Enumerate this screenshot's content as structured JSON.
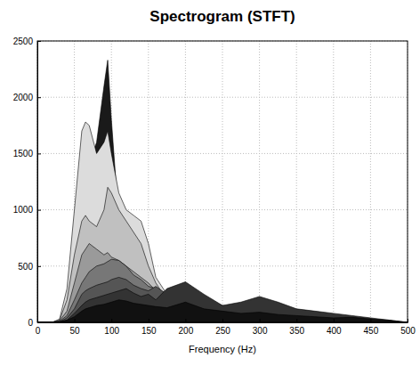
{
  "chart_data": {
    "type": "area",
    "title": "Spectrogram (STFT)",
    "x_label": "Frequency (Hz)",
    "x": [
      0,
      20,
      30,
      40,
      50,
      60,
      65,
      70,
      80,
      90,
      95,
      100,
      110,
      120,
      130,
      140,
      150,
      160,
      175,
      200,
      225,
      250,
      275,
      300,
      325,
      350,
      375,
      400,
      425,
      450,
      475,
      500
    ],
    "xlim": [
      0,
      500
    ],
    "xticks": [
      0,
      50,
      100,
      150,
      200,
      250,
      300,
      350,
      400,
      450,
      500
    ],
    "ylim": [
      0,
      2500
    ],
    "yticks": [
      0,
      500,
      1000,
      1500,
      2000,
      2500
    ],
    "grid": true,
    "series": [
      {
        "color": "#1a1a1a",
        "values": [
          0,
          0,
          20,
          150,
          600,
          1300,
          1500,
          1400,
          1600,
          2100,
          2330,
          1800,
          900,
          600,
          450,
          350,
          250,
          180,
          120,
          80,
          60,
          50,
          40,
          30,
          20,
          15,
          10,
          8,
          5,
          3,
          2,
          0
        ]
      },
      {
        "color": "#dcdcdc",
        "values": [
          0,
          0,
          30,
          300,
          1000,
          1700,
          1780,
          1750,
          1500,
          1600,
          1700,
          1500,
          1150,
          1000,
          950,
          900,
          700,
          400,
          250,
          150,
          100,
          80,
          60,
          50,
          40,
          30,
          20,
          15,
          10,
          5,
          3,
          0
        ]
      },
      {
        "color": "#c0c0c0",
        "values": [
          0,
          0,
          20,
          200,
          600,
          900,
          950,
          900,
          850,
          1000,
          1200,
          1150,
          1000,
          900,
          800,
          700,
          500,
          350,
          200,
          120,
          90,
          70,
          50,
          40,
          30,
          20,
          15,
          10,
          8,
          5,
          3,
          0
        ]
      },
      {
        "color": "#9a9a9a",
        "values": [
          0,
          0,
          15,
          100,
          350,
          600,
          650,
          700,
          650,
          600,
          620,
          580,
          550,
          500,
          450,
          400,
          350,
          280,
          200,
          150,
          120,
          90,
          70,
          60,
          50,
          40,
          30,
          20,
          15,
          10,
          5,
          0
        ]
      },
      {
        "color": "#777777",
        "values": [
          0,
          0,
          10,
          60,
          200,
          350,
          400,
          450,
          500,
          520,
          540,
          560,
          550,
          500,
          420,
          380,
          320,
          300,
          250,
          200,
          150,
          120,
          100,
          80,
          60,
          50,
          40,
          30,
          20,
          15,
          10,
          0
        ]
      },
      {
        "color": "#555555",
        "values": [
          0,
          0,
          5,
          40,
          120,
          250,
          280,
          300,
          330,
          350,
          360,
          380,
          400,
          380,
          330,
          300,
          280,
          320,
          250,
          280,
          200,
          150,
          120,
          200,
          150,
          100,
          80,
          60,
          40,
          30,
          20,
          0
        ]
      },
      {
        "color": "#333333",
        "values": [
          0,
          0,
          5,
          20,
          80,
          150,
          180,
          200,
          220,
          240,
          250,
          260,
          280,
          300,
          260,
          230,
          250,
          200,
          300,
          360,
          250,
          150,
          180,
          230,
          180,
          120,
          100,
          80,
          60,
          40,
          20,
          0
        ]
      },
      {
        "color": "#111111",
        "values": [
          0,
          0,
          5,
          20,
          50,
          100,
          120,
          130,
          150,
          160,
          170,
          180,
          200,
          190,
          170,
          160,
          150,
          140,
          130,
          180,
          120,
          100,
          80,
          90,
          70,
          60,
          50,
          40,
          45,
          30,
          15,
          0
        ]
      }
    ]
  }
}
